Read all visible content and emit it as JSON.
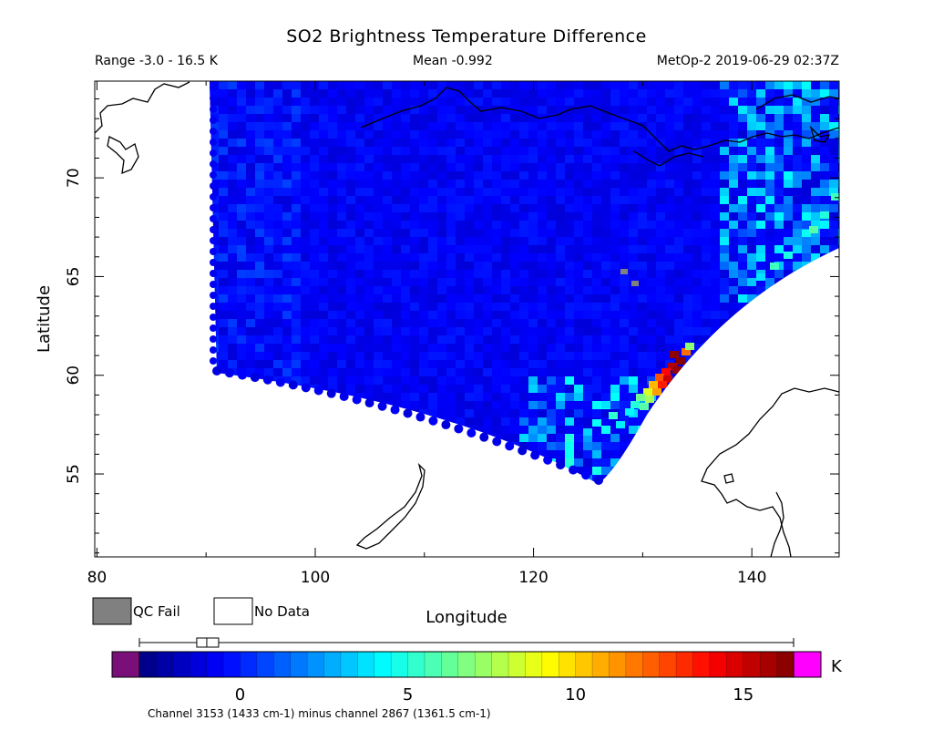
{
  "title": "SO2 Brightness Temperature Difference",
  "info": {
    "range": "Range -3.0 - 16.5 K",
    "mean": "Mean -0.992",
    "platform_time": "MetOp-2 2019-06-29 02:37Z"
  },
  "map": {
    "lon_range": [
      79.8,
      148
    ],
    "lat_range": [
      50.8,
      74.9
    ],
    "xlabel": "Longitude",
    "ylabel": "Latitude",
    "x_ticks": [
      80,
      100,
      120,
      140
    ],
    "y_ticks": [
      55,
      60,
      65,
      70
    ],
    "qc_fail_color": "#808080",
    "no_data_color": "#ffffff",
    "coast_color": "#000000"
  },
  "legend": {
    "qc_fail": "QC Fail",
    "no_data": "No Data"
  },
  "colorbar": {
    "min": -3.0,
    "max": 16.5,
    "ticks": [
      0,
      5,
      10,
      15
    ],
    "unit": "K",
    "under_color": "#7a0f7a",
    "over_color": "#ff00ff",
    "mean_value": -0.992,
    "caption": "Channel 3153 (1433 cm-1) minus channel 2867 (1361.5 cm-1)"
  }
}
